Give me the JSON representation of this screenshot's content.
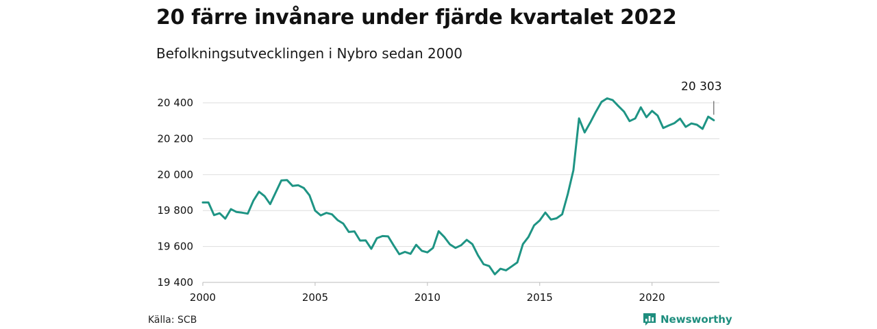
{
  "header": {
    "title": "20 färre invånare under fjärde kvartalet 2022",
    "subtitle": "Befolkningsutvecklingen i Nybro sedan 2000"
  },
  "footer": {
    "source": "Källa: SCB",
    "brand": "Newsworthy"
  },
  "colors": {
    "line": "#1e9484",
    "grid": "#dddddd",
    "brand": "#1e8e7e"
  },
  "chart_data": {
    "type": "line",
    "title": "20 färre invånare under fjärde kvartalet 2022",
    "subtitle": "Befolkningsutvecklingen i Nybro sedan 2000",
    "xlim": [
      2000,
      2023
    ],
    "ylim": [
      19400,
      20400
    ],
    "x_ticks": [
      2000,
      2005,
      2010,
      2015,
      2020
    ],
    "x_tick_labels": [
      "2000",
      "2005",
      "2010",
      "2015",
      "2020"
    ],
    "y_ticks": [
      19400,
      19600,
      19800,
      20000,
      20200,
      20400
    ],
    "y_tick_labels": [
      "19 400",
      "19 600",
      "19 800",
      "20 000",
      "20 200",
      "20 400"
    ],
    "grid": true,
    "last_value_label": "20 303",
    "series": [
      {
        "x": [
          2000.0,
          2000.25,
          2000.5,
          2000.75,
          2001.0,
          2001.25,
          2001.5,
          2001.75,
          2002.0,
          2002.25,
          2002.5,
          2002.75,
          2003.0,
          2003.25,
          2003.5,
          2003.75,
          2004.0,
          2004.25,
          2004.5,
          2004.75,
          2005.0,
          2005.25,
          2005.5,
          2005.75,
          2006.0,
          2006.25,
          2006.5,
          2006.75,
          2007.0,
          2007.25,
          2007.5,
          2007.75,
          2008.0,
          2008.25,
          2008.5,
          2008.75,
          2009.0,
          2009.25,
          2009.5,
          2009.75,
          2010.0,
          2010.25,
          2010.5,
          2010.75,
          2011.0,
          2011.25,
          2011.5,
          2011.75,
          2012.0,
          2012.25,
          2012.5,
          2012.75,
          2013.0,
          2013.25,
          2013.5,
          2013.75,
          2014.0,
          2014.25,
          2014.5,
          2014.75,
          2015.0,
          2015.25,
          2015.5,
          2015.75,
          2016.0,
          2016.25,
          2016.5,
          2016.75,
          2017.0,
          2017.25,
          2017.5,
          2017.75,
          2018.0,
          2018.25,
          2018.5,
          2018.75,
          2019.0,
          2019.25,
          2019.5,
          2019.75,
          2020.0,
          2020.25,
          2020.5,
          2020.75,
          2021.0,
          2021.25,
          2021.5,
          2021.75,
          2022.0,
          2022.25,
          2022.5,
          2022.75
        ],
        "values": [
          19845,
          19845,
          19775,
          19785,
          19755,
          19808,
          19792,
          19788,
          19783,
          19855,
          19905,
          19880,
          19836,
          19902,
          19968,
          19970,
          19937,
          19941,
          19925,
          19885,
          19800,
          19773,
          19787,
          19779,
          19747,
          19728,
          19681,
          19684,
          19633,
          19634,
          19587,
          19646,
          19658,
          19656,
          19605,
          19557,
          19570,
          19559,
          19609,
          19576,
          19567,
          19592,
          19685,
          19653,
          19612,
          19592,
          19607,
          19637,
          19613,
          19551,
          19501,
          19491,
          19445,
          19476,
          19467,
          19489,
          19511,
          19613,
          19653,
          19717,
          19745,
          19789,
          19750,
          19757,
          19779,
          19892,
          20025,
          20313,
          20235,
          20290,
          20350,
          20405,
          20425,
          20415,
          20382,
          20351,
          20298,
          20313,
          20375,
          20320,
          20355,
          20329,
          20260,
          20274,
          20287,
          20312,
          20266,
          20285,
          20278,
          20255,
          20323,
          20303
        ]
      }
    ]
  }
}
